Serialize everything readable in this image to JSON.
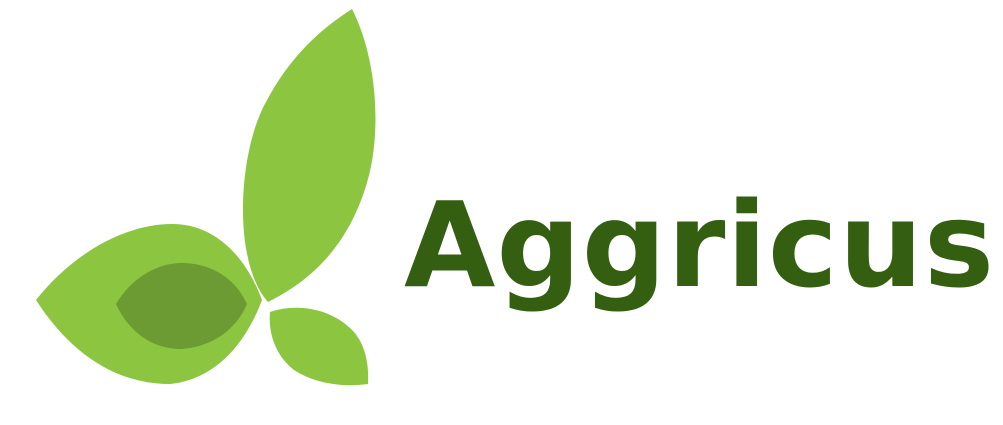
{
  "logo": {
    "wordmark": "Aggricus",
    "colors": {
      "leaf_light": "#8cc641",
      "leaf_dark": "#6b9b32",
      "wordmark": "#345f10",
      "background": "#ffffff"
    },
    "icon_name": "leaf-logo-icon"
  }
}
